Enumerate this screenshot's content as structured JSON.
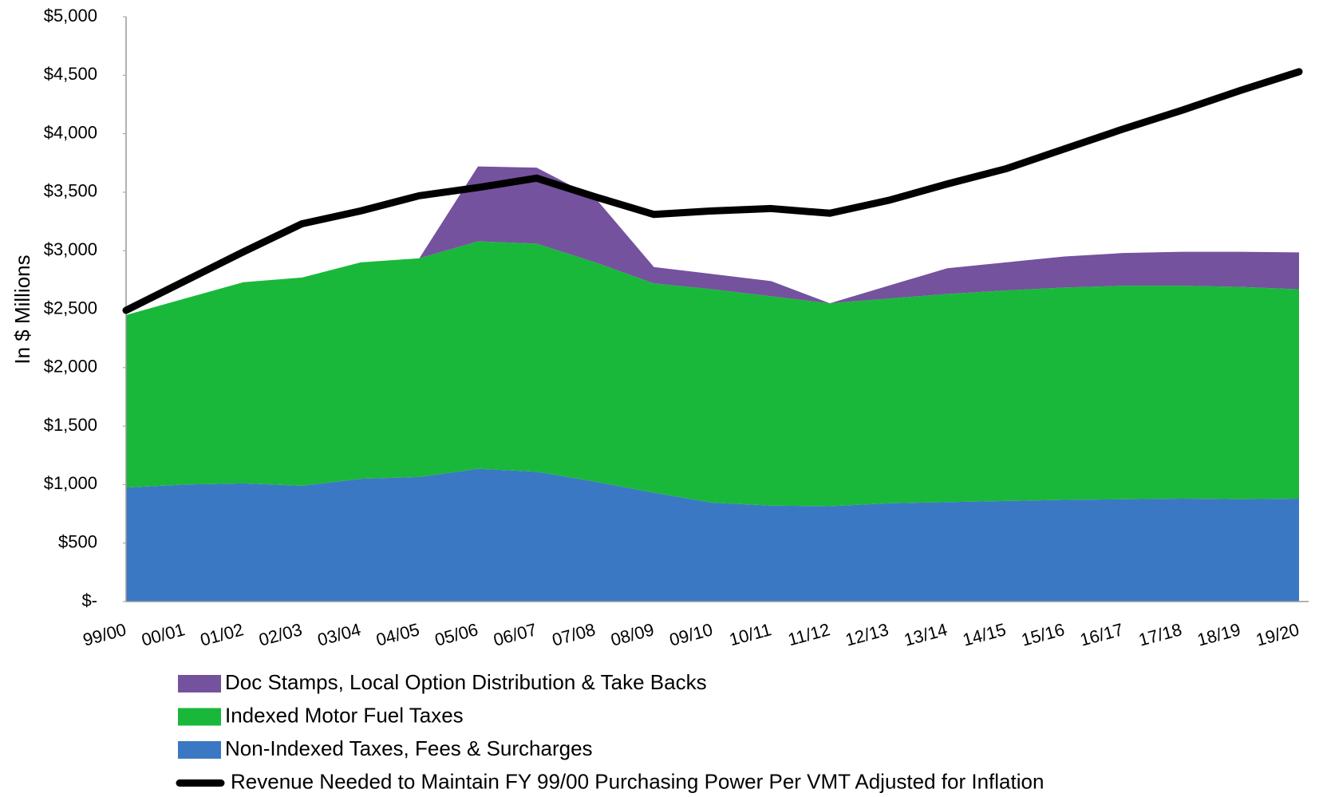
{
  "chart_data": {
    "type": "stacked_area_line",
    "y_label": "In $ Millions",
    "categories": [
      "99/00",
      "00/01",
      "01/02",
      "02/03",
      "03/04",
      "04/05",
      "05/06",
      "06/07",
      "07/08",
      "08/09",
      "09/10",
      "10/11",
      "11/12",
      "12/13",
      "13/14",
      "14/15",
      "15/16",
      "16/17",
      "17/18",
      "18/19",
      "19/20"
    ],
    "series": [
      {
        "name": "Non-Indexed Taxes, Fees & Surcharges",
        "color": "#3b78c4",
        "values": [
          975,
          1000,
          1010,
          990,
          1050,
          1065,
          1135,
          1110,
          1025,
          930,
          845,
          820,
          815,
          840,
          850,
          860,
          870,
          875,
          880,
          875,
          880
        ]
      },
      {
        "name": "Indexed Motor Fuel Taxes",
        "color": "#19b83a",
        "values": [
          1475,
          1590,
          1720,
          1780,
          1850,
          1870,
          1945,
          1950,
          1875,
          1790,
          1825,
          1790,
          1735,
          1750,
          1780,
          1800,
          1815,
          1825,
          1820,
          1815,
          1790
        ]
      },
      {
        "name": "Doc Stamps, Local Option Distribution & Take Backs",
        "color": "#74529e",
        "values": [
          0,
          0,
          0,
          0,
          0,
          0,
          640,
          650,
          550,
          140,
          130,
          130,
          0,
          110,
          220,
          240,
          265,
          280,
          290,
          300,
          315
        ]
      },
      {
        "name": "Revenue Needed to Maintain FY 99/00 Purchasing Power Per VMT Adjusted for Inflation",
        "color": "#000000",
        "kind": "line",
        "values": [
          2490,
          2740,
          2990,
          3230,
          3340,
          3470,
          3540,
          3620,
          3460,
          3310,
          3340,
          3360,
          3320,
          3430,
          3570,
          3700,
          3870,
          4040,
          4200,
          4370,
          4530
        ]
      }
    ],
    "ylim": [
      0,
      5000
    ],
    "yticks": [
      {
        "value": 0,
        "label": "$-"
      },
      {
        "value": 500,
        "label": "$500"
      },
      {
        "value": 1000,
        "label": "$1,000"
      },
      {
        "value": 1500,
        "label": "$1,500"
      },
      {
        "value": 2000,
        "label": "$2,000"
      },
      {
        "value": 2500,
        "label": "$2,500"
      },
      {
        "value": 3000,
        "label": "$3,000"
      },
      {
        "value": 3500,
        "label": "$3,500"
      },
      {
        "value": 4000,
        "label": "$4,000"
      },
      {
        "value": 4500,
        "label": "$4,500"
      },
      {
        "value": 5000,
        "label": "$5,000"
      }
    ]
  }
}
